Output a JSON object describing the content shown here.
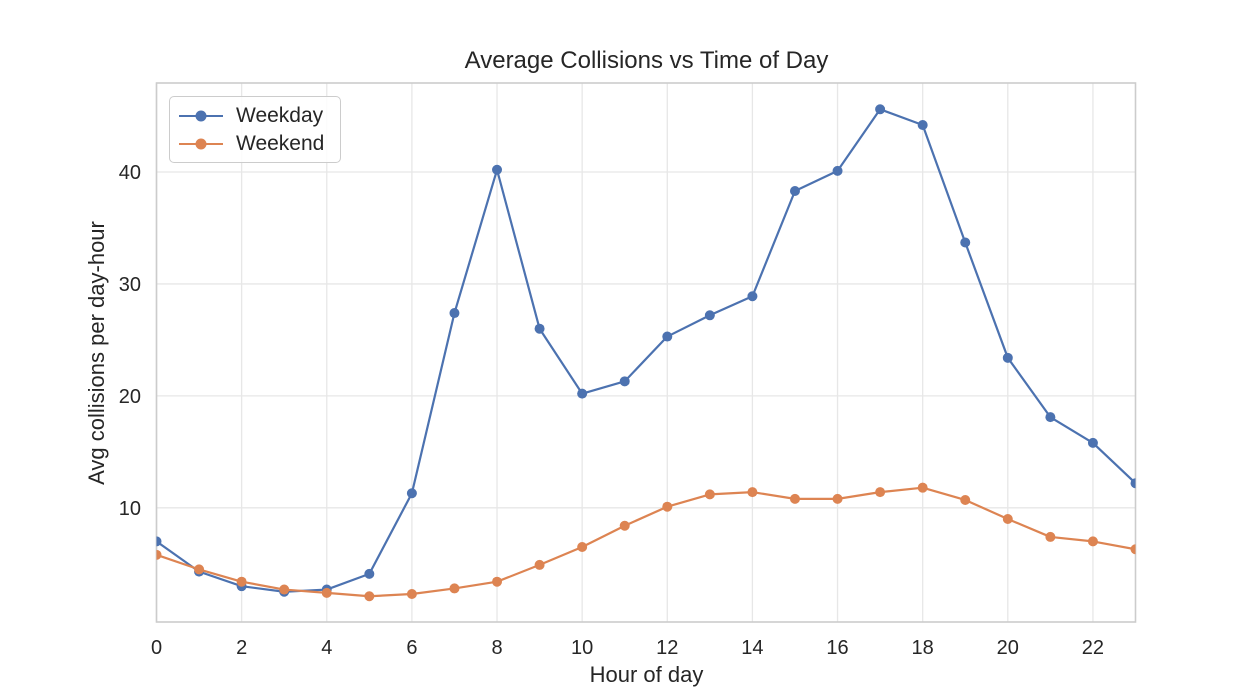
{
  "chart_data": {
    "type": "line",
    "title": "Average Collisions vs Time of Day",
    "xlabel": "Hour of day",
    "ylabel": "Avg collisions per day-hour",
    "x": [
      0,
      1,
      2,
      3,
      4,
      5,
      6,
      7,
      8,
      9,
      10,
      11,
      12,
      13,
      14,
      15,
      16,
      17,
      18,
      19,
      20,
      21,
      22,
      23
    ],
    "series": [
      {
        "name": "Weekday",
        "color": "#4C72B0",
        "values": [
          7.0,
          4.3,
          3.0,
          2.5,
          2.7,
          4.1,
          11.3,
          27.4,
          40.2,
          26.0,
          20.2,
          21.3,
          25.3,
          27.2,
          28.9,
          38.3,
          40.1,
          45.6,
          44.2,
          33.7,
          23.4,
          18.1,
          15.8,
          12.2
        ]
      },
      {
        "name": "Weekend",
        "color": "#DD8452",
        "values": [
          5.8,
          4.5,
          3.4,
          2.7,
          2.4,
          2.1,
          2.3,
          2.8,
          3.4,
          4.9,
          6.5,
          8.4,
          10.1,
          11.2,
          11.4,
          10.8,
          10.8,
          11.4,
          11.8,
          10.7,
          9.0,
          7.4,
          7.0,
          6.3
        ]
      }
    ],
    "xticks": [
      0,
      2,
      4,
      6,
      8,
      10,
      12,
      14,
      16,
      18,
      20,
      22
    ],
    "yticks": [
      10,
      20,
      30,
      40
    ],
    "xlim": [
      0,
      23
    ],
    "ylim": [
      -0.2,
      47.95
    ],
    "grid": true,
    "legend_position": "upper left",
    "colors": {
      "grid": "#e7e7e7",
      "spine": "#cccccc",
      "text": "#262626",
      "background": "#ffffff"
    }
  }
}
